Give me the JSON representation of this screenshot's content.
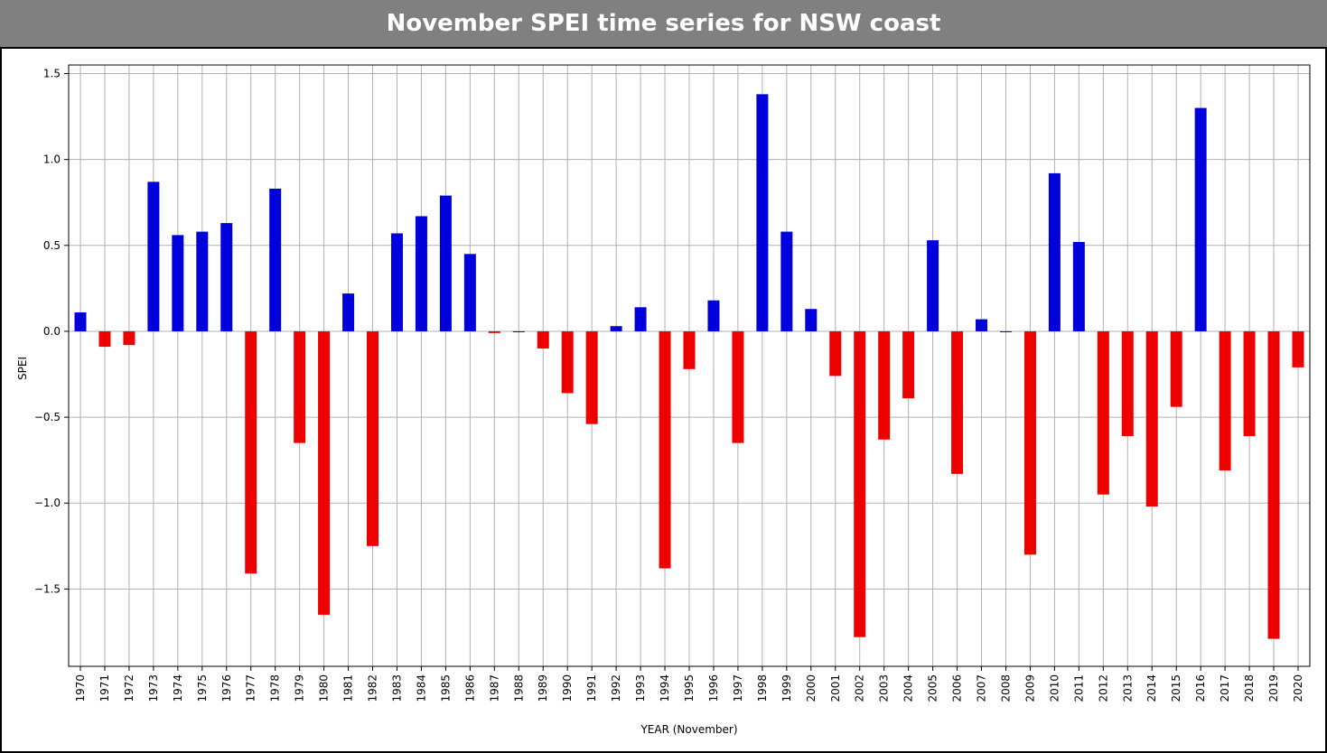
{
  "title": "November SPEI time series for NSW coast",
  "chart_data": {
    "type": "bar",
    "xlabel": "YEAR (November)",
    "ylabel": "SPEI",
    "ylim": [
      -1.95,
      1.55
    ],
    "yticks": [
      1.5,
      1.0,
      0.5,
      0.0,
      -0.5,
      -1.0,
      -1.5
    ],
    "ytick_labels": [
      "1.5",
      "1.0",
      "0.5",
      "0.0",
      "−0.5",
      "−1.0",
      "−1.5"
    ],
    "grid": true,
    "positive_color": "#0000dd",
    "negative_color": "#ee0000",
    "categories": [
      "1970",
      "1971",
      "1972",
      "1973",
      "1974",
      "1975",
      "1976",
      "1977",
      "1978",
      "1979",
      "1980",
      "1981",
      "1982",
      "1983",
      "1984",
      "1985",
      "1986",
      "1987",
      "1988",
      "1989",
      "1990",
      "1991",
      "1992",
      "1993",
      "1994",
      "1995",
      "1996",
      "1997",
      "1998",
      "1999",
      "2000",
      "2001",
      "2002",
      "2003",
      "2004",
      "2005",
      "2006",
      "2007",
      "2008",
      "2009",
      "2010",
      "2011",
      "2012",
      "2013",
      "2014",
      "2015",
      "2016",
      "2017",
      "2018",
      "2019",
      "2020"
    ],
    "values": [
      0.11,
      -0.09,
      -0.08,
      0.87,
      0.56,
      0.58,
      0.63,
      -1.41,
      0.83,
      -0.65,
      -1.65,
      0.22,
      -1.25,
      0.57,
      0.67,
      0.79,
      0.45,
      -0.01,
      0.0,
      -0.1,
      -0.36,
      -0.54,
      0.03,
      0.14,
      -1.38,
      -0.22,
      0.18,
      -0.65,
      1.38,
      0.58,
      0.13,
      -0.26,
      -1.78,
      -0.63,
      -0.39,
      0.53,
      -0.83,
      0.07,
      0.0,
      -1.3,
      0.92,
      0.52,
      -0.95,
      -0.61,
      -1.02,
      -0.44,
      1.3,
      -0.81,
      -0.61,
      -1.79,
      -0.21
    ]
  }
}
